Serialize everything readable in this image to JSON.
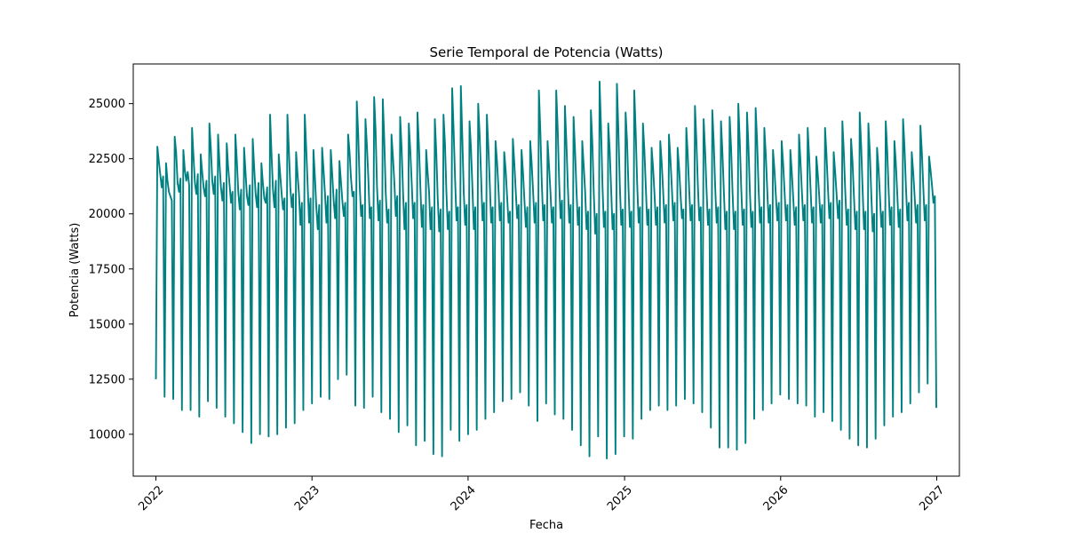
{
  "chart_data": {
    "type": "line",
    "title": "Serie Temporal de Potencia (Watts)",
    "xlabel": "Fecha",
    "ylabel": "Potencia (Watts)",
    "x_axis": "date",
    "xlim": [
      "2021-11-09",
      "2027-02-23"
    ],
    "ylim": [
      8100,
      26800
    ],
    "x_ticks": [
      "2022",
      "2023",
      "2024",
      "2025",
      "2026",
      "2027"
    ],
    "y_ticks": [
      10000,
      12500,
      15000,
      17500,
      20000,
      22500,
      25000
    ],
    "grid": false,
    "legend": "none",
    "series": [
      {
        "color": "#008080",
        "x_range": [
          "2022-01-01",
          "2026-12-31"
        ],
        "sampling": "daily",
        "pattern": "weekly cycle: weekday values ~19000-26000, weekend dips ~9000-12500; annual variation with summer troughs",
        "y": [
          12500,
          23050,
          22400,
          21800,
          21200,
          21700,
          11700,
          22300,
          21500,
          21000,
          20800,
          20600,
          11600,
          23500,
          22800,
          21400,
          21000,
          21600,
          11100,
          22900,
          22000,
          21500,
          21900,
          21300,
          11100,
          23900,
          22600,
          21400,
          20900,
          21800,
          10800,
          22700,
          21900,
          21200,
          20800,
          21500,
          11500,
          24100,
          23000,
          21500,
          20900,
          21700,
          11200,
          23600,
          22300,
          21200,
          20600,
          21400,
          10800,
          23200,
          22100,
          21300,
          20500,
          21000,
          10500,
          23600,
          22400,
          21000,
          20200,
          21100,
          10100,
          23000,
          21900,
          20800,
          20400,
          21300,
          9600,
          23400,
          22100,
          20900,
          20300,
          21400,
          10000,
          22300,
          21400,
          20700,
          20500,
          21200,
          9900,
          24500,
          22700,
          21100,
          20300,
          21500,
          10000,
          22700,
          21800,
          20900,
          20200,
          20700,
          10300,
          24500,
          22900,
          21200,
          20300,
          20900,
          10500,
          22800,
          21800,
          20900,
          19500,
          20500,
          11100,
          24500,
          23000,
          21300,
          19600,
          20700,
          11400,
          22900,
          21700,
          20300,
          19300,
          20400,
          11700,
          23000,
          22000,
          20900,
          19600,
          20800,
          11600,
          22900,
          21800,
          20600,
          19800,
          21100,
          12500,
          22400,
          21500,
          20600,
          19900,
          20500,
          12700,
          23600,
          22800,
          21600,
          20800,
          21000,
          11300,
          25100,
          23600,
          21300,
          19900,
          20400,
          11200,
          24300,
          23100,
          21600,
          19800,
          20300,
          11700,
          25300,
          23800,
          21200,
          19700,
          20600,
          11000,
          25200,
          23400,
          21000,
          19600,
          20200,
          10700,
          23600,
          22600,
          21400,
          19900,
          20800,
          10100,
          24400,
          23000,
          21000,
          19300,
          20500,
          10400,
          24100,
          22900,
          21400,
          19800,
          20500,
          9500,
          24600,
          23100,
          21200,
          19400,
          20400,
          9700,
          22900,
          21900,
          21000,
          19300,
          20300,
          9100,
          24300,
          22800,
          20700,
          19200,
          20200,
          9000,
          24500,
          23200,
          21000,
          19300,
          20100,
          10200,
          25700,
          23800,
          21600,
          19700,
          20300,
          9700,
          25800,
          23500,
          21000,
          19500,
          20400,
          10000,
          24200,
          23000,
          21200,
          19300,
          20300,
          10200,
          25000,
          23600,
          21700,
          19700,
          20500,
          10700,
          24500,
          23100,
          21400,
          19600,
          20300,
          11000,
          23300,
          22400,
          21200,
          19700,
          20500,
          11500,
          22800,
          22000,
          20800,
          19600,
          20100,
          11600,
          23400,
          22300,
          21000,
          19800,
          20400,
          11900,
          22900,
          21900,
          20600,
          19400,
          20300,
          11300,
          23300,
          22300,
          21000,
          19600,
          20500,
          10600,
          25600,
          23800,
          21400,
          19700,
          20400,
          11400,
          23300,
          22200,
          21000,
          19600,
          20300,
          10900,
          25600,
          23900,
          21500,
          19800,
          20600,
          10700,
          24900,
          23300,
          21300,
          19600,
          20400,
          10200,
          24400,
          22900,
          21100,
          19500,
          20300,
          9500,
          23300,
          22200,
          21000,
          19300,
          20100,
          9000,
          24700,
          23200,
          20900,
          19100,
          20000,
          9900,
          26000,
          23900,
          21300,
          19400,
          20100,
          8900,
          24100,
          22900,
          21100,
          19300,
          20000,
          9100,
          25900,
          23800,
          21300,
          19500,
          20200,
          9900,
          24600,
          23300,
          21200,
          19400,
          20100,
          9800,
          25600,
          23700,
          21400,
          19600,
          20300,
          10700,
          24100,
          22900,
          21200,
          19500,
          20200,
          11100,
          23000,
          22100,
          20900,
          19500,
          20300,
          11300,
          23300,
          22300,
          21000,
          19600,
          20400,
          11100,
          23600,
          22500,
          21200,
          19700,
          20500,
          11300,
          23000,
          22100,
          20900,
          19800,
          20200,
          11600,
          23900,
          22700,
          21100,
          19700,
          20400,
          11400,
          24900,
          23300,
          21300,
          19700,
          20300,
          11000,
          24300,
          22900,
          21100,
          19500,
          20200,
          10300,
          24700,
          23200,
          21200,
          19600,
          20300,
          9400,
          24200,
          22800,
          21000,
          19300,
          20100,
          9400,
          24400,
          23000,
          21000,
          19300,
          20100,
          9300,
          25000,
          23300,
          21200,
          19500,
          20200,
          9600,
          24600,
          23100,
          21000,
          19400,
          20100,
          10700,
          24800,
          23300,
          21200,
          19600,
          20300,
          11100,
          23900,
          22700,
          21100,
          19600,
          20400,
          11400,
          22900,
          22000,
          20800,
          19700,
          20500,
          11800,
          23300,
          22300,
          21000,
          19700,
          20400,
          11600,
          22900,
          21900,
          20700,
          19500,
          20300,
          11400,
          23600,
          22400,
          21000,
          19700,
          20400,
          11300,
          23900,
          22600,
          21100,
          19600,
          20300,
          10800,
          22600,
          21800,
          20800,
          19600,
          20400,
          11000,
          23900,
          22700,
          21200,
          19800,
          20500,
          10600,
          22800,
          21900,
          20900,
          19800,
          20600,
          10200,
          24200,
          22800,
          21000,
          19500,
          20200,
          9800,
          23400,
          22400,
          20800,
          19300,
          20100,
          9500,
          24600,
          23100,
          21100,
          19300,
          20100,
          9400,
          24100,
          22800,
          20900,
          19200,
          20000,
          9800,
          23000,
          22100,
          20800,
          19400,
          20100,
          10400,
          24200,
          22900,
          21100,
          19500,
          20300,
          10800,
          23300,
          22300,
          20900,
          19400,
          20200,
          11000,
          24300,
          23000,
          21200,
          19700,
          20500,
          11400,
          22800,
          21900,
          20800,
          19600,
          20400,
          11900,
          24000,
          22800,
          21200,
          19700,
          20400,
          12300,
          22600,
          22000,
          21300,
          20500,
          20800,
          11200
        ]
      }
    ]
  }
}
